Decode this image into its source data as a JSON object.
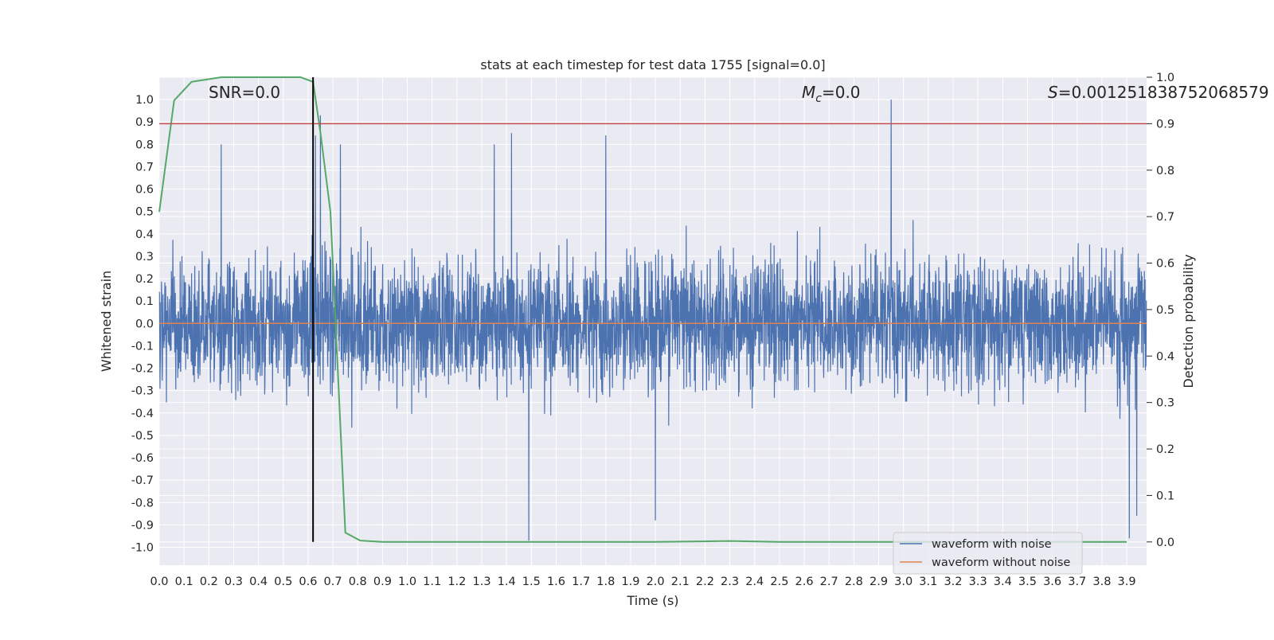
{
  "chart_data": {
    "type": "line",
    "title": "stats at each timestep for test data 1755 [signal=0.0]",
    "xlabel": "Time (s)",
    "ylabel_left": "Whitened strain",
    "ylabel_right": "Detection probability",
    "xlim": [
      0.0,
      3.98
    ],
    "ylim_left": [
      -1.08,
      1.1
    ],
    "ylim_right": [
      -0.05,
      1.0
    ],
    "x_ticks": [
      "0.0",
      "0.1",
      "0.2",
      "0.3",
      "0.4",
      "0.5",
      "0.6",
      "0.7",
      "0.8",
      "0.9",
      "1.0",
      "1.1",
      "1.2",
      "1.3",
      "1.4",
      "1.5",
      "1.6",
      "1.7",
      "1.8",
      "1.9",
      "2.0",
      "2.1",
      "2.2",
      "2.3",
      "2.4",
      "2.5",
      "2.6",
      "2.7",
      "2.8",
      "2.9",
      "3.0",
      "3.1",
      "3.2",
      "3.3",
      "3.4",
      "3.5",
      "3.6",
      "3.7",
      "3.8",
      "3.9"
    ],
    "y_ticks_left": [
      "1.0",
      "0.9",
      "0.8",
      "0.7",
      "0.6",
      "0.5",
      "0.4",
      "0.3",
      "0.2",
      "0.1",
      "0.0",
      "-0.1",
      "-0.2",
      "-0.3",
      "-0.4",
      "-0.5",
      "-0.6",
      "-0.7",
      "-0.8",
      "-0.9",
      "-1.0"
    ],
    "y_ticks_right": [
      "1.0",
      "0.9",
      "0.8",
      "0.7",
      "0.6",
      "0.5",
      "0.4",
      "0.3",
      "0.2",
      "0.1",
      "0.0"
    ],
    "annotations": {
      "snr": "SNR=0.0",
      "mc_symbol": "M",
      "mc_sub": "c",
      "mc_value": "=0.0",
      "s_symbol": "S",
      "s_value": "=0.001251838752068579"
    },
    "threshold_right": 0.9,
    "peak_time": 0.62,
    "legend": {
      "position": "lower right",
      "entries": [
        {
          "label": "waveform with noise",
          "color": "#4c72b0"
        },
        {
          "label": "waveform without noise",
          "color": "#dd8452"
        }
      ]
    },
    "series": [
      {
        "name": "waveform with noise",
        "color": "#4c72b0",
        "n_samples": 4000,
        "envelope_approx": [
          -0.97,
          1.0
        ],
        "notable_peaks": [
          {
            "x": 2.95,
            "y": 1.0
          },
          {
            "x": 0.65,
            "y": 0.93
          },
          {
            "x": 1.49,
            "y": -0.97
          },
          {
            "x": 3.91,
            "y": -0.96
          },
          {
            "x": 2.0,
            "y": -0.88
          },
          {
            "x": 3.94,
            "y": -0.86
          },
          {
            "x": 1.42,
            "y": 0.85
          },
          {
            "x": 1.8,
            "y": 0.84
          },
          {
            "x": 0.63,
            "y": 0.84
          },
          {
            "x": 0.25,
            "y": 0.8
          },
          {
            "x": 0.73,
            "y": 0.8
          },
          {
            "x": 1.35,
            "y": 0.8
          }
        ]
      },
      {
        "name": "waveform without noise",
        "color": "#dd8452",
        "x": [
          0.0,
          3.98
        ],
        "y": [
          0.0,
          0.0
        ]
      },
      {
        "name": "detection probability",
        "color": "#55a868",
        "axis": "right",
        "x": [
          0.0,
          0.06,
          0.13,
          0.25,
          0.37,
          0.5,
          0.57,
          0.62,
          0.65,
          0.69,
          0.75,
          0.81,
          0.9,
          1.0,
          1.5,
          2.0,
          2.3,
          2.5,
          3.0,
          3.5,
          3.9
        ],
        "y": [
          0.71,
          0.95,
          0.99,
          1.0,
          1.0,
          1.0,
          1.0,
          0.99,
          0.88,
          0.71,
          0.02,
          0.003,
          0.0,
          0.0,
          0.0,
          0.0,
          0.002,
          0.0,
          0.0,
          0.0,
          0.0
        ]
      }
    ]
  }
}
